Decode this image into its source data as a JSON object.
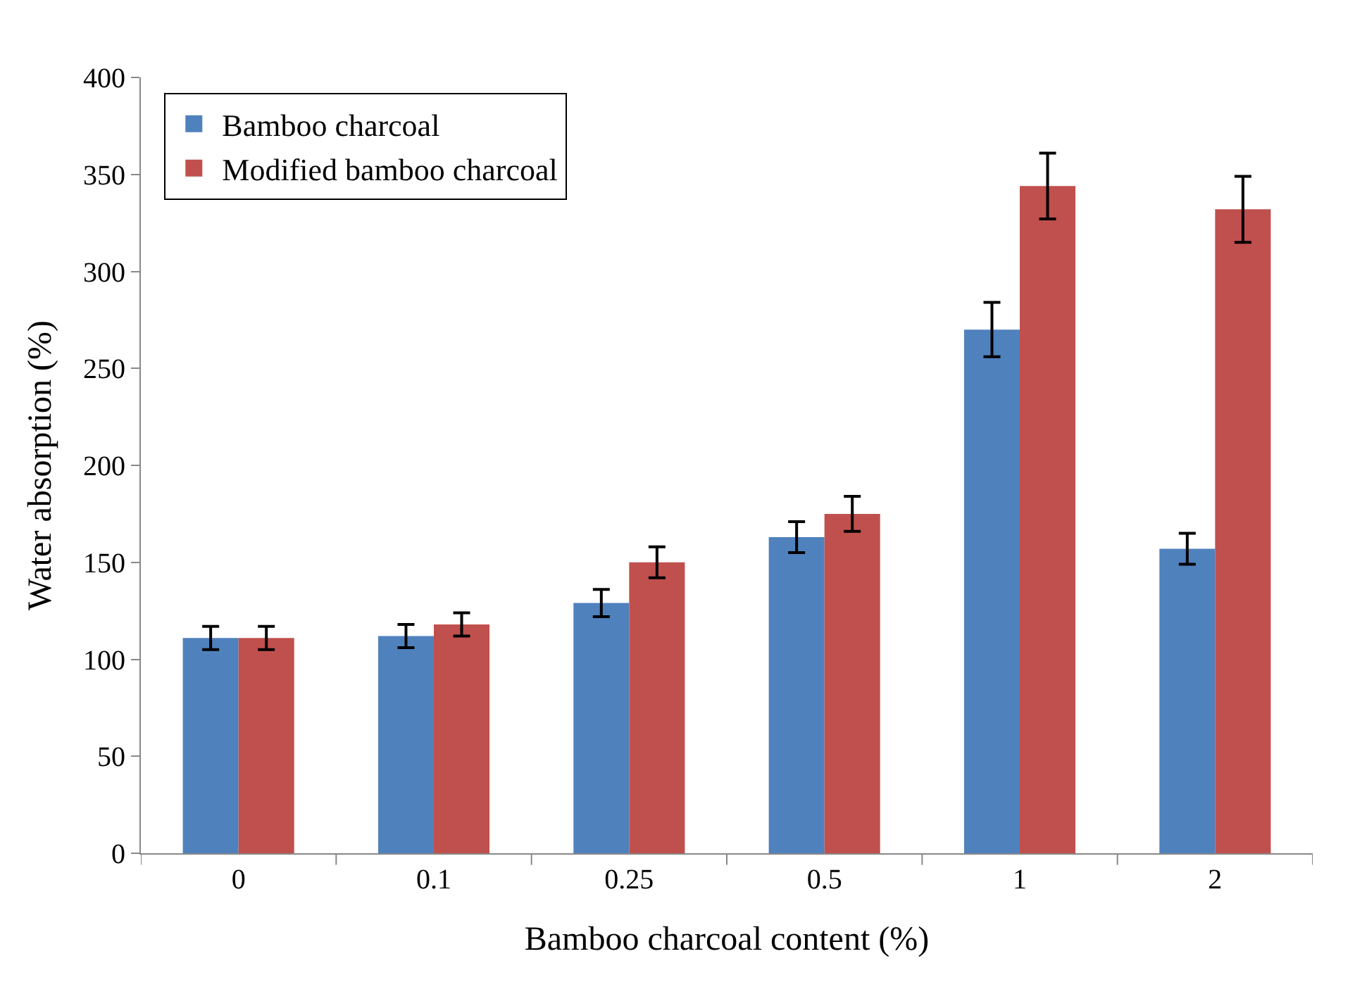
{
  "chart_data": {
    "type": "bar",
    "xlabel": "Bamboo charcoal content (%)",
    "ylabel": "Water absorption (%)",
    "categories": [
      "0",
      "0.1",
      "0.25",
      "0.5",
      "1",
      "2"
    ],
    "series": [
      {
        "name": "Bamboo charcoal",
        "color": "#4f81bd",
        "values": [
          111,
          112,
          129,
          163,
          270,
          157
        ],
        "errors": [
          6,
          6,
          7,
          8,
          14,
          8
        ]
      },
      {
        "name": "Modified bamboo charcoal",
        "color": "#c0504d",
        "values": [
          111,
          118,
          150,
          175,
          344,
          332
        ],
        "errors": [
          6,
          6,
          8,
          9,
          17,
          17
        ]
      }
    ],
    "ylim": [
      0,
      400
    ],
    "yticks": [
      0,
      50,
      100,
      150,
      200,
      250,
      300,
      350,
      400
    ],
    "legend": "top left"
  }
}
